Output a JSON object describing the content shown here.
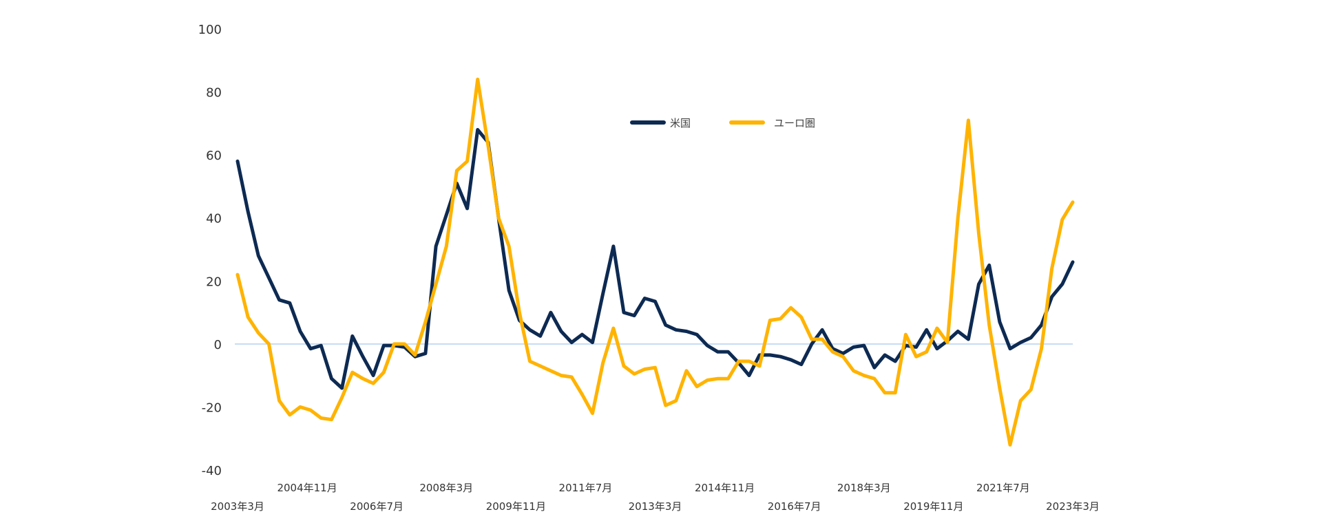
{
  "chart_data": {
    "type": "line",
    "title": "",
    "xlabel": "",
    "ylabel": "",
    "ylim": [
      -40,
      100
    ],
    "yticks": [
      100,
      80,
      60,
      40,
      20,
      0,
      -20,
      -40
    ],
    "grid": false,
    "zero_line": true,
    "legend_placement": "top-center",
    "x_start": "2003-03",
    "x_step_months": 3,
    "x_tick_labels": [
      {
        "label": "2003年3月",
        "month_index": 0,
        "row": 2
      },
      {
        "label": "2004年11月",
        "month_index": 20,
        "row": 1
      },
      {
        "label": "2006年7月",
        "month_index": 40,
        "row": 2
      },
      {
        "label": "2008年3月",
        "month_index": 60,
        "row": 1
      },
      {
        "label": "2009年11月",
        "month_index": 80,
        "row": 2
      },
      {
        "label": "2011年7月",
        "month_index": 100,
        "row": 1
      },
      {
        "label": "2013年3月",
        "month_index": 120,
        "row": 2
      },
      {
        "label": "2014年11月",
        "month_index": 140,
        "row": 1
      },
      {
        "label": "2016年7月",
        "month_index": 160,
        "row": 2
      },
      {
        "label": "2018年3月",
        "month_index": 180,
        "row": 1
      },
      {
        "label": "2019年11月",
        "month_index": 200,
        "row": 2
      },
      {
        "label": "2021年7月",
        "month_index": 220,
        "row": 1
      },
      {
        "label": "2023年3月",
        "month_index": 240,
        "row": 2
      }
    ],
    "series": [
      {
        "name": "米国",
        "color": "#0d2a52",
        "values": [
          58,
          42,
          28,
          21,
          14,
          13,
          4,
          -1.5,
          -0.5,
          -11,
          -14,
          2.5,
          -4,
          -10,
          -0.5,
          -0.5,
          -1,
          -4,
          -3,
          31,
          41,
          51,
          43,
          68,
          64,
          40,
          17,
          7.5,
          4.5,
          2.5,
          10,
          4,
          0.5,
          3,
          0.5,
          16,
          31,
          10,
          9,
          14.5,
          13.5,
          6,
          4.5,
          4,
          3,
          -0.5,
          -2.5,
          -2.5,
          -6,
          -10,
          -3.5,
          -3.5,
          -4,
          -5,
          -6.5,
          0,
          4.5,
          -1.5,
          -3,
          -1,
          -0.5,
          -7.5,
          -3.5,
          -5.5,
          -0.5,
          -1,
          4.5,
          -1.5,
          1,
          4,
          1.5,
          19,
          25,
          7,
          -1.5,
          0.5,
          2,
          6,
          15,
          19,
          26
        ]
      },
      {
        "name": "ユーロ圏",
        "color": "#ffb300",
        "values": [
          22,
          8.5,
          3.5,
          0,
          -18,
          -22.5,
          -20,
          -21,
          -23.5,
          -24,
          -17,
          -9,
          -11,
          -12.5,
          -9,
          0,
          0,
          -3.5,
          7,
          19,
          31,
          55,
          58,
          84,
          63,
          40,
          31,
          10,
          -5.5,
          -7,
          -8.5,
          -10,
          -10.5,
          -16,
          -22,
          -6,
          5,
          -7,
          -9.5,
          -8,
          -7.5,
          -19.5,
          -18,
          -8.5,
          -13.5,
          -11.5,
          -11,
          -11,
          -5.5,
          -5.5,
          -7,
          7.5,
          8,
          11.5,
          8.5,
          1.5,
          1.5,
          -2.5,
          -4,
          -8.5,
          -10,
          -11,
          -15.5,
          -15.5,
          3,
          -4,
          -2.5,
          5,
          0.5,
          40,
          71,
          35,
          6,
          -14,
          -32,
          -18,
          -14.5,
          -1.5,
          24,
          39.5,
          45
        ]
      }
    ],
    "zero_line_color": "#c5dcf5"
  }
}
